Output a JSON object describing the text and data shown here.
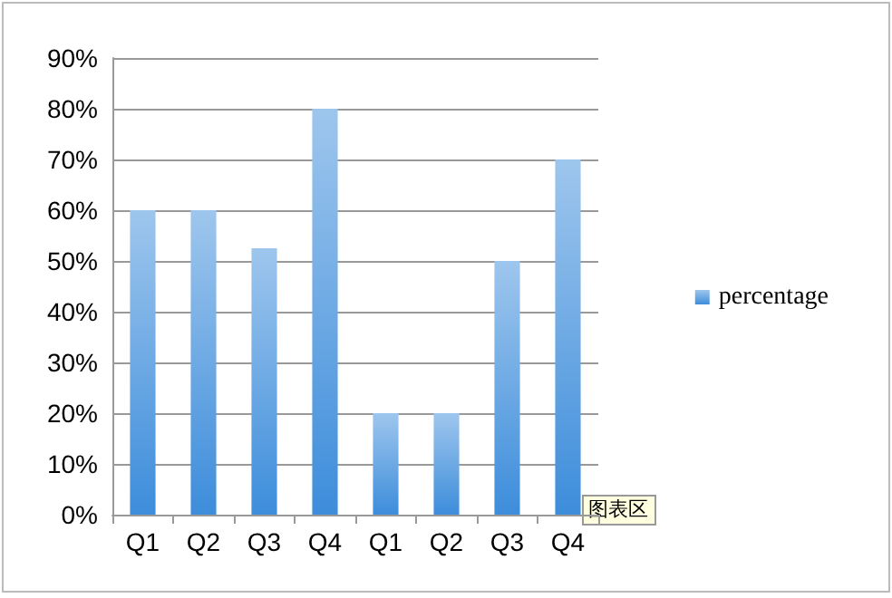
{
  "chart_data": {
    "type": "bar",
    "categories": [
      "Q1",
      "Q2",
      "Q3",
      "Q4",
      "Q1",
      "Q2",
      "Q3",
      "Q4"
    ],
    "series": [
      {
        "name": "percentage",
        "color": "#3d8ddb",
        "values": [
          60,
          60,
          52.5,
          80,
          20,
          20,
          50,
          70
        ]
      }
    ],
    "ylim": [
      0,
      90
    ],
    "yticks": [
      {
        "value": 0,
        "label": "0%"
      },
      {
        "value": 10,
        "label": "10%"
      },
      {
        "value": 20,
        "label": "20%"
      },
      {
        "value": 30,
        "label": "30%"
      },
      {
        "value": 40,
        "label": "40%"
      },
      {
        "value": 50,
        "label": "50%"
      },
      {
        "value": 60,
        "label": "60%"
      },
      {
        "value": 70,
        "label": "70%"
      },
      {
        "value": 80,
        "label": "80%"
      },
      {
        "value": 90,
        "label": "90%"
      }
    ],
    "grid": "y",
    "legend": "right",
    "annotations": [
      "图表区"
    ]
  }
}
